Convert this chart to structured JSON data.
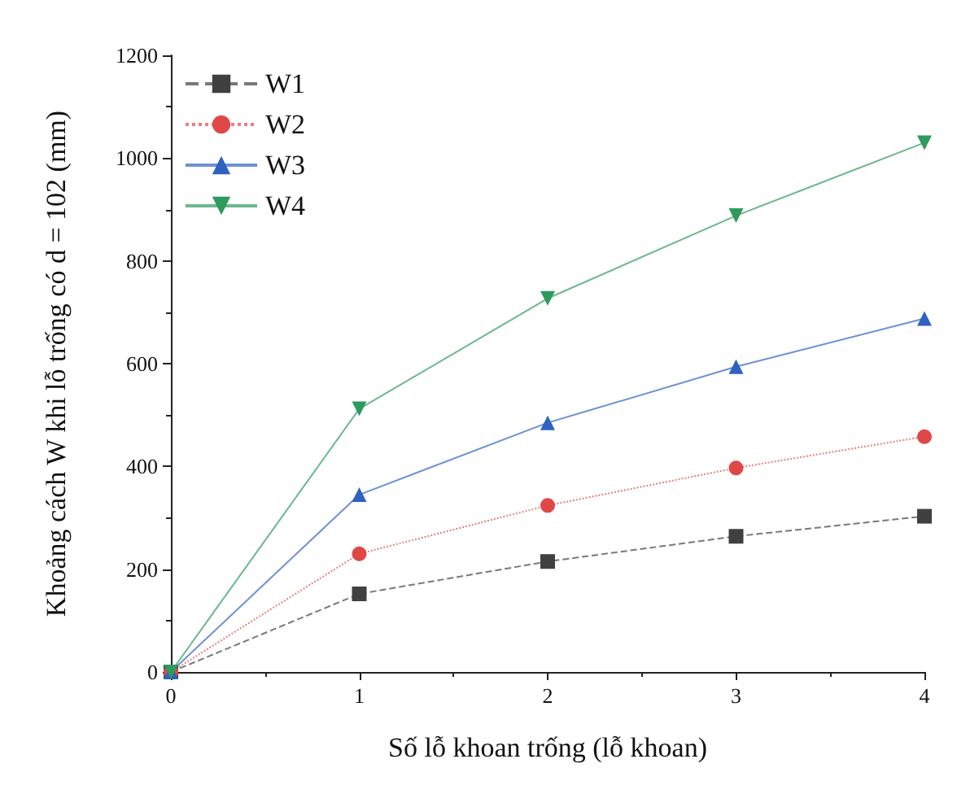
{
  "chart_data": {
    "type": "line",
    "xlabel": "Số lỗ khoan trống (lỗ khoan)",
    "ylabel": "Khoảng cách W khi lỗ trống có d = 102 (mm)",
    "x": [
      0,
      1,
      2,
      3,
      4
    ],
    "xlim": [
      0,
      4
    ],
    "xticks": [
      0,
      1,
      2,
      3,
      4
    ],
    "ylim": [
      0,
      1200
    ],
    "yticks": [
      0,
      200,
      400,
      600,
      800,
      1000,
      1200
    ],
    "legend": "top left",
    "grid": false,
    "series": [
      {
        "name": "W1",
        "color": "#404040",
        "marker": "square",
        "line_style": "dashed",
        "values": [
          0,
          152,
          215,
          264,
          303
        ]
      },
      {
        "name": "W2",
        "color": "#e04848",
        "marker": "circle",
        "line_style": "dotted",
        "values": [
          0,
          230,
          324,
          397,
          458
        ]
      },
      {
        "name": "W3",
        "color": "#2f62c0",
        "marker": "triangle",
        "line_style": "solid",
        "values": [
          0,
          345,
          485,
          594,
          688
        ]
      },
      {
        "name": "W4",
        "color": "#2e9a5e",
        "marker": "triangle-down",
        "line_style": "solid",
        "values": [
          0,
          512,
          727,
          888,
          1030
        ]
      }
    ]
  }
}
